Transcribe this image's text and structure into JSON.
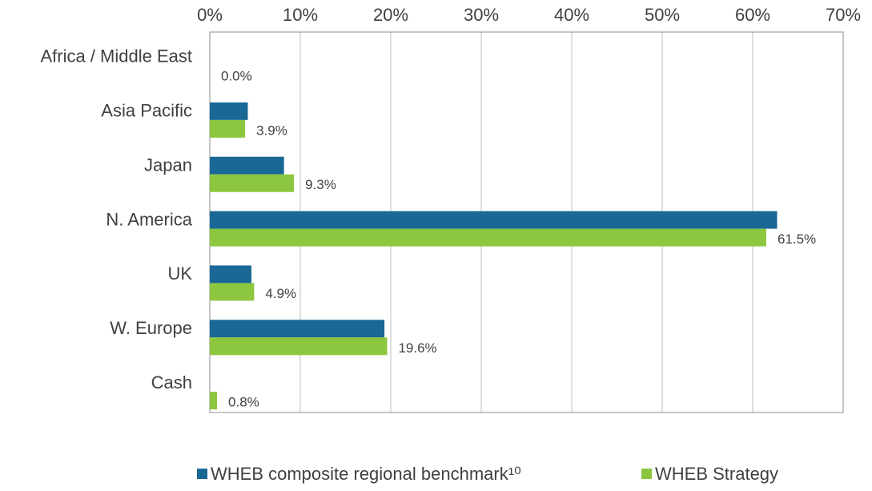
{
  "chart_data": {
    "type": "barh",
    "categories": [
      "Africa / Middle East",
      "Asia Pacific",
      "Japan",
      "N. America",
      "UK",
      "W. Europe",
      "Cash"
    ],
    "series": [
      {
        "name": "WHEB composite regional benchmark¹⁰",
        "color": "#1a6896",
        "values": [
          0,
          4.2,
          8.2,
          62.7,
          4.6,
          19.3,
          0
        ]
      },
      {
        "name": "WHEB Strategy",
        "color": "#8dc63f",
        "values": [
          0.0,
          3.9,
          9.3,
          61.5,
          4.9,
          19.6,
          0.8
        ],
        "value_labels": [
          "0.0%",
          "3.9%",
          "9.3%",
          "61.5%",
          "4.9%",
          "19.6%",
          "0.8%"
        ]
      }
    ],
    "xlim": [
      0,
      70
    ],
    "xticks": [
      {
        "value": 0,
        "label": "0%"
      },
      {
        "value": 10,
        "label": "10%"
      },
      {
        "value": 20,
        "label": "20%"
      },
      {
        "value": 30,
        "label": "30%"
      },
      {
        "value": 40,
        "label": "40%"
      },
      {
        "value": 50,
        "label": "50%"
      },
      {
        "value": 60,
        "label": "60%"
      },
      {
        "value": 70,
        "label": "70%"
      }
    ],
    "grid": true,
    "legend": "bottom"
  }
}
